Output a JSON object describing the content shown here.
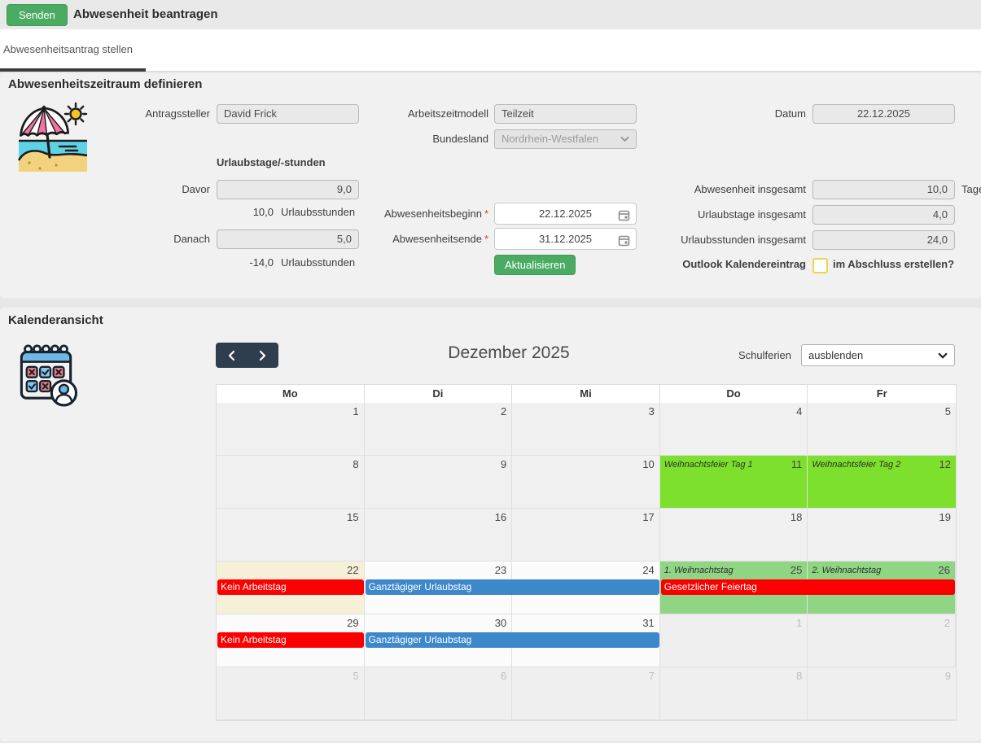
{
  "colors": {
    "accent_green": "#4cab63",
    "nav_dark": "#2e3e4e",
    "event_red": "#fb0000",
    "event_blue": "#3d87cb",
    "holiday_lime": "#7de02c",
    "holiday_light_green": "#8fd584",
    "today_beige": "#f6f0d8"
  },
  "header": {
    "send_button": "Senden",
    "title": "Abwesenheit beantragen"
  },
  "tabs": {
    "active_tab": "Abwesenheitsantrag stellen"
  },
  "form": {
    "section_title": "Abwesenheitszeitraum definieren",
    "required_marker": "*",
    "antragssteller": {
      "label": "Antragssteller",
      "value": "David Frick"
    },
    "arbeitszeitmodell": {
      "label": "Arbeitszeitmodell",
      "value": "Teilzeit"
    },
    "bundesland": {
      "label": "Bundesland",
      "value": "Nordrhein-Westfalen"
    },
    "datum": {
      "label": "Datum",
      "value": "22.12.2025"
    },
    "urlaubstage_heading": "Urlaubstage/-stunden",
    "davor": {
      "label": "Davor",
      "value": "9,0",
      "hours": "10,0",
      "hours_unit": "Urlaubsstunden"
    },
    "danach": {
      "label": "Danach",
      "value": "5,0",
      "hours": "-14,0",
      "hours_unit": "Urlaubsstunden"
    },
    "abwesenheitsbeginn": {
      "label": "Abwesenheitsbeginn",
      "value": "22.12.2025"
    },
    "abwesenheitsende": {
      "label": "Abwesenheitsende",
      "value": "31.12.2025"
    },
    "aktualisieren_button": "Aktualisieren",
    "abwesenheit_insgesamt": {
      "label": "Abwesenheit insgesamt",
      "value": "10,0",
      "unit": "Tage"
    },
    "urlaubstage_insgesamt": {
      "label": "Urlaubstage insgesamt",
      "value": "4,0"
    },
    "urlaubsstunden_insgesamt": {
      "label": "Urlaubsstunden insgesamt",
      "value": "24,0"
    },
    "outlook": {
      "label": "Outlook Kalendereintrag",
      "question": "im Abschluss erstellen?",
      "checked": false
    }
  },
  "calendar": {
    "section_title": "Kalenderansicht",
    "month_title": "Dezember 2025",
    "schulferien": {
      "label": "Schulferien",
      "selected": "ausblenden"
    },
    "weekdays": [
      "Mo",
      "Di",
      "Mi",
      "Do",
      "Fr"
    ],
    "weeks": [
      {
        "days": [
          {
            "n": "1"
          },
          {
            "n": "2"
          },
          {
            "n": "3"
          },
          {
            "n": "4"
          },
          {
            "n": "5"
          }
        ]
      },
      {
        "days": [
          {
            "n": "8"
          },
          {
            "n": "9"
          },
          {
            "n": "10"
          },
          {
            "n": "11",
            "bg": "lime",
            "label": "Weihnachtsfeier Tag 1"
          },
          {
            "n": "12",
            "bg": "lime",
            "label": "Weihnachtsfeier Tag 2"
          }
        ]
      },
      {
        "days": [
          {
            "n": "15"
          },
          {
            "n": "16"
          },
          {
            "n": "17"
          },
          {
            "n": "18"
          },
          {
            "n": "19"
          }
        ]
      },
      {
        "days": [
          {
            "n": "22",
            "bg": "today"
          },
          {
            "n": "23",
            "bg": "sel"
          },
          {
            "n": "24",
            "bg": "sel"
          },
          {
            "n": "25",
            "bg": "green",
            "label": "1. Weihnachtstag"
          },
          {
            "n": "26",
            "bg": "green",
            "label": "2. Weihnachtstag"
          }
        ],
        "events": [
          {
            "text": "Kein Arbeitstag",
            "col": 0,
            "span": 1,
            "type": "red"
          },
          {
            "text": "Ganztägiger Urlaubstag",
            "col": 1,
            "span": 2,
            "type": "blue"
          },
          {
            "text": "Gesetzlicher Feiertag",
            "col": 3,
            "span": 2,
            "type": "red"
          }
        ]
      },
      {
        "days": [
          {
            "n": "29",
            "bg": "sel"
          },
          {
            "n": "30",
            "bg": "sel"
          },
          {
            "n": "31",
            "bg": "sel"
          },
          {
            "n": "1",
            "other": true
          },
          {
            "n": "2",
            "other": true
          }
        ],
        "events": [
          {
            "text": "Kein Arbeitstag",
            "col": 0,
            "span": 1,
            "type": "red"
          },
          {
            "text": "Ganztägiger Urlaubstag",
            "col": 1,
            "span": 2,
            "type": "blue"
          }
        ]
      },
      {
        "days": [
          {
            "n": "5",
            "other": true
          },
          {
            "n": "6",
            "other": true
          },
          {
            "n": "7",
            "other": true
          },
          {
            "n": "8",
            "other": true
          },
          {
            "n": "9",
            "other": true
          }
        ]
      }
    ]
  }
}
